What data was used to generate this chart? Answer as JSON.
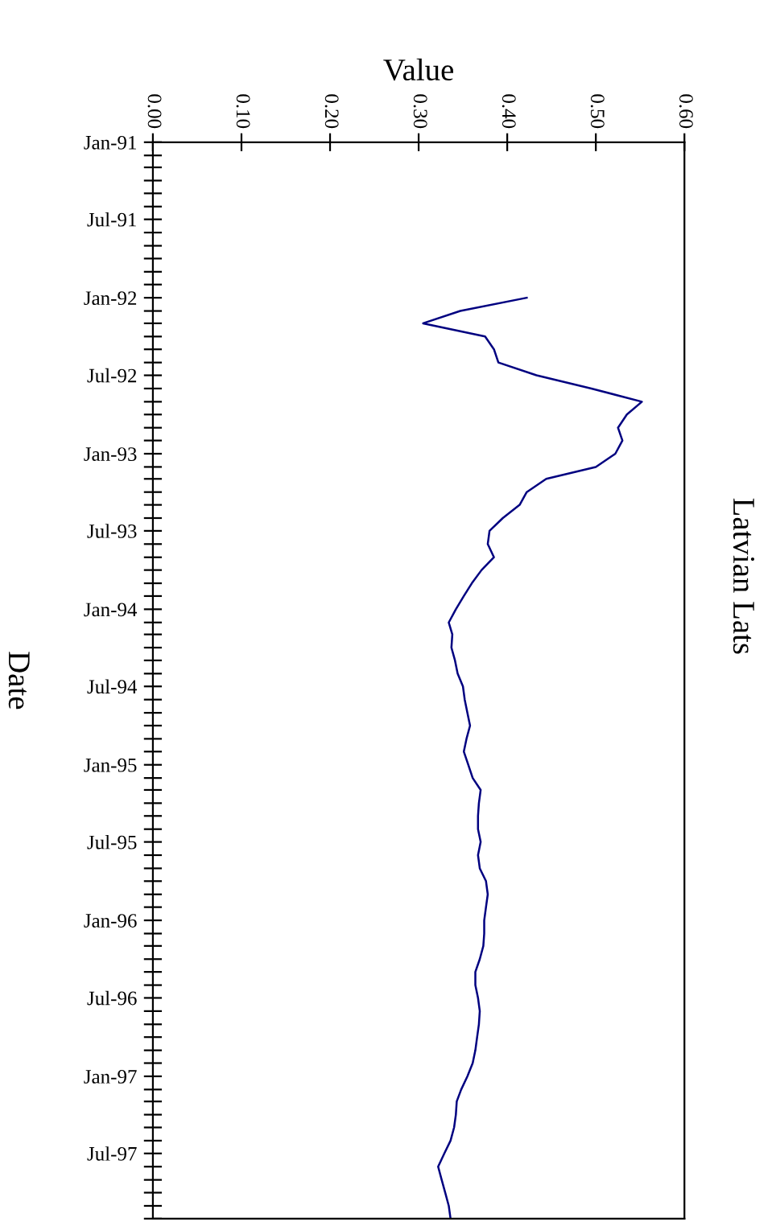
{
  "chart_data": {
    "type": "line",
    "title": "Latvian Lats",
    "xlabel": "Value",
    "ylabel": "Date",
    "x": [
      "1992-01",
      "1992-02",
      "1992-03",
      "1992-04",
      "1992-05",
      "1992-06",
      "1992-07",
      "1992-08",
      "1992-09",
      "1992-10",
      "1992-11",
      "1992-12",
      "1993-01",
      "1993-02",
      "1993-03",
      "1993-04",
      "1993-05",
      "1993-06",
      "1993-07",
      "1993-08",
      "1993-09",
      "1993-10",
      "1993-11",
      "1993-12",
      "1994-01",
      "1994-02",
      "1994-03",
      "1994-04",
      "1994-05",
      "1994-06",
      "1994-07",
      "1994-08",
      "1994-09",
      "1994-10",
      "1994-11",
      "1994-12",
      "1995-01",
      "1995-02",
      "1995-03",
      "1995-04",
      "1995-05",
      "1995-06",
      "1995-07",
      "1995-08",
      "1995-09",
      "1995-10",
      "1995-11",
      "1995-12",
      "1996-01",
      "1996-02",
      "1996-03",
      "1996-04",
      "1996-05",
      "1996-06",
      "1996-07",
      "1996-08",
      "1996-09",
      "1996-10",
      "1996-11",
      "1996-12",
      "1997-01",
      "1997-02",
      "1997-03",
      "1997-04",
      "1997-05",
      "1997-06",
      "1997-07",
      "1997-08",
      "1997-09",
      "1997-10",
      "1997-11",
      "1997-12"
    ],
    "series": [
      {
        "color": "#000080",
        "values": [
          0.422,
          0.347,
          0.305,
          0.375,
          0.385,
          0.39,
          0.433,
          0.495,
          0.552,
          0.535,
          0.525,
          0.53,
          0.522,
          0.5,
          0.444,
          0.422,
          0.414,
          0.395,
          0.38,
          0.378,
          0.385,
          0.371,
          0.36,
          0.351,
          0.342,
          0.334,
          0.338,
          0.337,
          0.341,
          0.344,
          0.35,
          0.352,
          0.355,
          0.358,
          0.354,
          0.351,
          0.356,
          0.361,
          0.37,
          0.368,
          0.367,
          0.367,
          0.37,
          0.367,
          0.369,
          0.376,
          0.378,
          0.376,
          0.374,
          0.374,
          0.373,
          0.369,
          0.364,
          0.364,
          0.367,
          0.369,
          0.368,
          0.366,
          0.364,
          0.361,
          0.355,
          0.348,
          0.343,
          0.342,
          0.34,
          0.336,
          0.329,
          0.322,
          0.326,
          0.33,
          0.334,
          0.336
        ]
      }
    ],
    "orientation": "horizontal",
    "ylim": [
      "1997-12",
      "1991-01"
    ],
    "xlim": [
      0,
      0.6
    ],
    "xticks": [
      {
        "value": 0,
        "label": "0.00"
      },
      {
        "value": 0.1,
        "label": "0.10"
      },
      {
        "value": 0.2,
        "label": "0.20"
      },
      {
        "value": 0.3,
        "label": "0.30"
      },
      {
        "value": 0.4,
        "label": "0.40"
      },
      {
        "value": 0.5,
        "label": "0.50"
      },
      {
        "value": 0.6,
        "label": "0.60"
      }
    ],
    "yticks": [
      {
        "value": "1991-01",
        "label": "Jan-91"
      },
      {
        "value": "1991-02",
        "label": null
      },
      {
        "value": "1991-03",
        "label": null
      },
      {
        "value": "1991-04",
        "label": null
      },
      {
        "value": "1991-05",
        "label": null
      },
      {
        "value": "1991-06",
        "label": null
      },
      {
        "value": "1991-07",
        "label": "Jul-91"
      },
      {
        "value": "1991-08",
        "label": null
      },
      {
        "value": "1991-09",
        "label": null
      },
      {
        "value": "1991-10",
        "label": null
      },
      {
        "value": "1991-11",
        "label": null
      },
      {
        "value": "1991-12",
        "label": null
      },
      {
        "value": "1992-01",
        "label": "Jan-92"
      },
      {
        "value": "1992-02",
        "label": null
      },
      {
        "value": "1992-03",
        "label": null
      },
      {
        "value": "1992-04",
        "label": null
      },
      {
        "value": "1992-05",
        "label": null
      },
      {
        "value": "1992-06",
        "label": null
      },
      {
        "value": "1992-07",
        "label": "Jul-92"
      },
      {
        "value": "1992-08",
        "label": null
      },
      {
        "value": "1992-09",
        "label": null
      },
      {
        "value": "1992-10",
        "label": null
      },
      {
        "value": "1992-11",
        "label": null
      },
      {
        "value": "1992-12",
        "label": null
      },
      {
        "value": "1993-01",
        "label": "Jan-93"
      },
      {
        "value": "1993-02",
        "label": null
      },
      {
        "value": "1993-03",
        "label": null
      },
      {
        "value": "1993-04",
        "label": null
      },
      {
        "value": "1993-05",
        "label": null
      },
      {
        "value": "1993-06",
        "label": null
      },
      {
        "value": "1993-07",
        "label": "Jul-93"
      },
      {
        "value": "1993-08",
        "label": null
      },
      {
        "value": "1993-09",
        "label": null
      },
      {
        "value": "1993-10",
        "label": null
      },
      {
        "value": "1993-11",
        "label": null
      },
      {
        "value": "1993-12",
        "label": null
      },
      {
        "value": "1994-01",
        "label": "Jan-94"
      },
      {
        "value": "1994-02",
        "label": null
      },
      {
        "value": "1994-03",
        "label": null
      },
      {
        "value": "1994-04",
        "label": null
      },
      {
        "value": "1994-05",
        "label": null
      },
      {
        "value": "1994-06",
        "label": null
      },
      {
        "value": "1994-07",
        "label": "Jul-94"
      },
      {
        "value": "1994-08",
        "label": null
      },
      {
        "value": "1994-09",
        "label": null
      },
      {
        "value": "1994-10",
        "label": null
      },
      {
        "value": "1994-11",
        "label": null
      },
      {
        "value": "1994-12",
        "label": null
      },
      {
        "value": "1995-01",
        "label": "Jan-95"
      },
      {
        "value": "1995-02",
        "label": null
      },
      {
        "value": "1995-03",
        "label": null
      },
      {
        "value": "1995-04",
        "label": null
      },
      {
        "value": "1995-05",
        "label": null
      },
      {
        "value": "1995-06",
        "label": null
      },
      {
        "value": "1995-07",
        "label": "Jul-95"
      },
      {
        "value": "1995-08",
        "label": null
      },
      {
        "value": "1995-09",
        "label": null
      },
      {
        "value": "1995-10",
        "label": null
      },
      {
        "value": "1995-11",
        "label": null
      },
      {
        "value": "1995-12",
        "label": null
      },
      {
        "value": "1996-01",
        "label": "Jan-96"
      },
      {
        "value": "1996-02",
        "label": null
      },
      {
        "value": "1996-03",
        "label": null
      },
      {
        "value": "1996-04",
        "label": null
      },
      {
        "value": "1996-05",
        "label": null
      },
      {
        "value": "1996-06",
        "label": null
      },
      {
        "value": "1996-07",
        "label": "Jul-96"
      },
      {
        "value": "1996-08",
        "label": null
      },
      {
        "value": "1996-09",
        "label": null
      },
      {
        "value": "1996-10",
        "label": null
      },
      {
        "value": "1996-11",
        "label": null
      },
      {
        "value": "1996-12",
        "label": null
      },
      {
        "value": "1997-01",
        "label": "Jan-97"
      },
      {
        "value": "1997-02",
        "label": null
      },
      {
        "value": "1997-03",
        "label": null
      },
      {
        "value": "1997-04",
        "label": null
      },
      {
        "value": "1997-05",
        "label": null
      },
      {
        "value": "1997-06",
        "label": null
      },
      {
        "value": "1997-07",
        "label": "Jul-97"
      },
      {
        "value": "1997-08",
        "label": null
      },
      {
        "value": "1997-09",
        "label": null
      },
      {
        "value": "1997-10",
        "label": null
      },
      {
        "value": "1997-11",
        "label": null
      },
      {
        "value": "1997-12",
        "label": null
      }
    ],
    "grid": false,
    "legend": false
  }
}
